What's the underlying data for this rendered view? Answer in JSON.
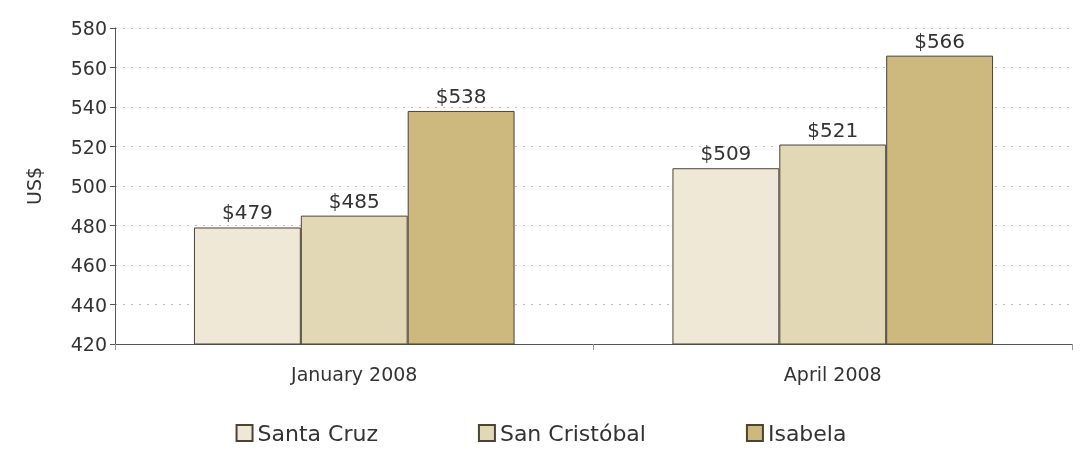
{
  "chart_data": {
    "type": "bar",
    "ylabel": "US$",
    "categories": [
      "January 2008",
      "April 2008"
    ],
    "series": [
      {
        "name": "Santa Cruz",
        "color": "#f0e8d6",
        "values": [
          479,
          509
        ],
        "value_labels": [
          "$479",
          "$509"
        ]
      },
      {
        "name": "San Cristóbal",
        "color": "#e2d8b5",
        "values": [
          485,
          521
        ],
        "value_labels": [
          "$485",
          "$521"
        ]
      },
      {
        "name": "Isabela",
        "color": "#cdb87e",
        "values": [
          538,
          566
        ],
        "value_labels": [
          "$538",
          "$566"
        ]
      }
    ],
    "ylim": [
      420,
      580
    ],
    "yticks": [
      420,
      440,
      460,
      480,
      500,
      520,
      540,
      560,
      580
    ],
    "grid": "y",
    "legend": "bottom"
  }
}
